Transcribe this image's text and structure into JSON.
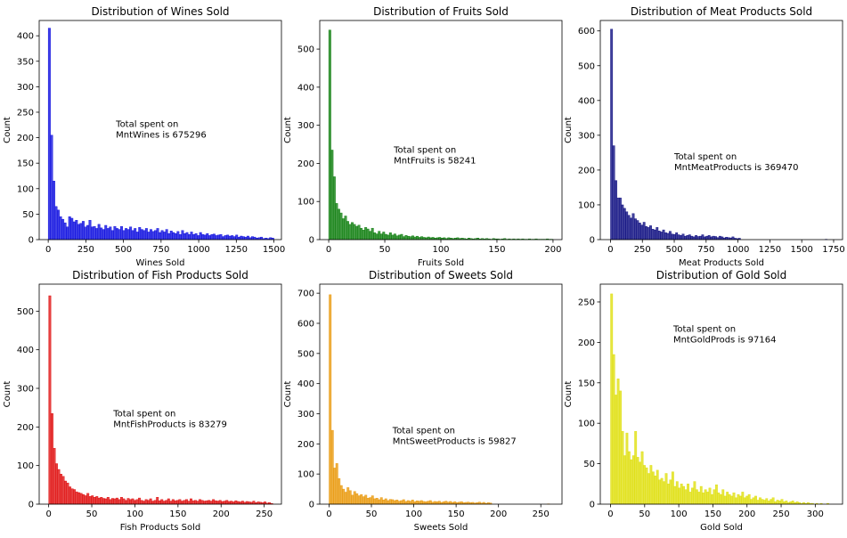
{
  "chart_data": [
    {
      "type": "bar",
      "title": "Distribution of Wines Sold",
      "xlabel": "Wines Sold",
      "ylabel": "Count",
      "xlim": [
        -60,
        1550
      ],
      "ylim": [
        0,
        430
      ],
      "xticks": [
        0,
        250,
        500,
        750,
        1000,
        1250,
        1500
      ],
      "yticks": [
        0,
        50,
        100,
        150,
        200,
        250,
        300,
        350,
        400
      ],
      "color": "#0000dd",
      "annotation": [
        "Total spent on",
        "MntWines is 675296"
      ],
      "annotation_pos": [
        450,
        200
      ],
      "bin_width": 15,
      "values": [
        415,
        205,
        115,
        65,
        58,
        45,
        40,
        33,
        25,
        45,
        42,
        35,
        38,
        30,
        32,
        36,
        25,
        28,
        38,
        25,
        26,
        22,
        30,
        23,
        20,
        28,
        22,
        25,
        18,
        26,
        22,
        20,
        26,
        18,
        22,
        20,
        25,
        18,
        22,
        15,
        24,
        20,
        18,
        22,
        15,
        20,
        16,
        18,
        22,
        14,
        18,
        15,
        20,
        12,
        17,
        14,
        12,
        16,
        10,
        18,
        12,
        14,
        10,
        15,
        10,
        12,
        8,
        14,
        10,
        9,
        12,
        8,
        10,
        11,
        8,
        9,
        10,
        6,
        8,
        9,
        7,
        8,
        6,
        9,
        5,
        7,
        6,
        5,
        7,
        4,
        6,
        5,
        3,
        4,
        5,
        2,
        3,
        2,
        4,
        3,
        0
      ]
    },
    {
      "type": "bar",
      "title": "Distribution of Fruits Sold",
      "xlabel": "Fruits Sold",
      "ylabel": "Count",
      "xlim": [
        -8,
        208
      ],
      "ylim": [
        0,
        575
      ],
      "xticks": [
        0,
        50,
        100,
        150,
        200
      ],
      "yticks": [
        0,
        100,
        200,
        300,
        400,
        500
      ],
      "color": "#007700",
      "annotation": [
        "Total spent on",
        "MntFruits is 58241"
      ],
      "annotation_pos": [
        58,
        200
      ],
      "bin_width": 2,
      "values": [
        550,
        235,
        165,
        95,
        80,
        70,
        55,
        62,
        48,
        40,
        45,
        40,
        35,
        38,
        30,
        25,
        32,
        28,
        22,
        30,
        18,
        15,
        22,
        15,
        20,
        14,
        12,
        18,
        12,
        15,
        10,
        12,
        14,
        8,
        11,
        9,
        8,
        10,
        7,
        9,
        6,
        8,
        6,
        5,
        7,
        5,
        6,
        4,
        5,
        6,
        4,
        5,
        3,
        5,
        4,
        3,
        4,
        5,
        3,
        4,
        3,
        2,
        4,
        3,
        2,
        3,
        4,
        2,
        3,
        2,
        3,
        2,
        1,
        3,
        2,
        2,
        1,
        2,
        3,
        1,
        2,
        1,
        2,
        1,
        2,
        1,
        2,
        1,
        1,
        2,
        1,
        1,
        2,
        1,
        1,
        1,
        1,
        2,
        1,
        1
      ]
    },
    {
      "type": "bar",
      "title": "Distribution of Meat Products Sold",
      "xlabel": "Meat Products Sold",
      "ylabel": "Count",
      "xlim": [
        -80,
        1820
      ],
      "ylim": [
        0,
        630
      ],
      "xticks": [
        0,
        250,
        500,
        750,
        1000,
        1250,
        1500,
        1750
      ],
      "yticks": [
        0,
        100,
        200,
        300,
        400,
        500,
        600
      ],
      "color": "#00007a",
      "annotation": [
        "Total spent on",
        "MntMeatProducts is 369470"
      ],
      "annotation_pos": [
        500,
        200
      ],
      "bin_width": 17,
      "values": [
        605,
        270,
        170,
        120,
        120,
        100,
        90,
        80,
        70,
        62,
        75,
        60,
        55,
        48,
        42,
        50,
        38,
        35,
        40,
        30,
        28,
        35,
        25,
        22,
        28,
        20,
        18,
        24,
        16,
        15,
        20,
        14,
        12,
        16,
        10,
        12,
        14,
        10,
        8,
        12,
        9,
        10,
        14,
        8,
        10,
        12,
        8,
        10,
        9,
        6,
        10,
        8,
        5,
        7,
        6,
        5,
        8,
        4,
        3,
        4,
        0,
        0,
        0,
        0,
        0,
        0,
        0,
        0,
        0,
        0,
        0,
        0,
        0,
        0,
        0,
        0,
        0,
        0,
        0,
        0,
        0,
        0,
        0,
        0,
        0,
        0,
        0,
        0,
        0,
        0,
        0,
        0,
        0,
        0,
        0,
        0,
        0,
        0,
        0,
        1
      ]
    },
    {
      "type": "bar",
      "title": "Distribution of Fish Products Sold",
      "xlabel": "Fish Products Sold",
      "ylabel": "Count",
      "xlim": [
        -11,
        270
      ],
      "ylim": [
        0,
        570
      ],
      "xticks": [
        0,
        50,
        100,
        150,
        200,
        250
      ],
      "yticks": [
        0,
        100,
        200,
        300,
        400,
        500
      ],
      "color": "#dd0000",
      "annotation": [
        "Total spent on",
        "MntFishProducts is 83279"
      ],
      "annotation_pos": [
        75,
        200
      ],
      "bin_width": 2.6,
      "values": [
        540,
        235,
        145,
        105,
        90,
        78,
        72,
        60,
        55,
        45,
        40,
        38,
        32,
        30,
        28,
        25,
        22,
        28,
        20,
        22,
        18,
        20,
        16,
        18,
        15,
        14,
        18,
        12,
        15,
        14,
        16,
        12,
        18,
        14,
        10,
        15,
        12,
        14,
        10,
        12,
        16,
        10,
        8,
        12,
        10,
        14,
        8,
        10,
        18,
        9,
        12,
        8,
        10,
        14,
        8,
        12,
        9,
        10,
        12,
        8,
        10,
        12,
        8,
        14,
        9,
        10,
        8,
        12,
        10,
        8,
        9,
        10,
        8,
        12,
        9,
        8,
        10,
        7,
        8,
        10,
        7,
        8,
        6,
        9,
        7,
        6,
        8,
        5,
        7,
        6,
        5,
        8,
        4,
        6,
        5,
        4,
        6,
        3,
        4,
        2
      ]
    },
    {
      "type": "bar",
      "title": "Distribution of Sweets Sold",
      "xlabel": "Sweets Sold",
      "ylabel": "Count",
      "xlim": [
        -11,
        275
      ],
      "ylim": [
        0,
        730
      ],
      "xticks": [
        0,
        50,
        100,
        150,
        200,
        250
      ],
      "yticks": [
        0,
        100,
        200,
        300,
        400,
        500,
        600,
        700
      ],
      "color": "#e89400",
      "annotation": [
        "Total spent on",
        "MntSweetProducts is 59827"
      ],
      "annotation_pos": [
        75,
        200
      ],
      "bin_width": 2.63,
      "values": [
        695,
        245,
        120,
        135,
        85,
        62,
        50,
        40,
        55,
        45,
        30,
        42,
        35,
        28,
        32,
        25,
        30,
        20,
        22,
        28,
        18,
        20,
        15,
        22,
        14,
        18,
        12,
        16,
        15,
        12,
        14,
        10,
        12,
        15,
        9,
        12,
        10,
        14,
        8,
        11,
        10,
        12,
        9,
        8,
        10,
        12,
        7,
        9,
        8,
        10,
        6,
        8,
        10,
        7,
        9,
        6,
        8,
        5,
        7,
        8,
        5,
        6,
        7,
        5,
        6,
        4,
        5,
        7,
        4,
        6,
        3,
        5,
        4,
        0,
        0,
        0,
        0,
        0,
        0,
        0,
        0,
        0,
        0,
        0,
        0,
        0,
        0,
        0,
        0,
        0,
        0,
        0,
        0,
        0,
        0,
        0,
        0,
        0,
        1,
        0
      ]
    },
    {
      "type": "bar",
      "title": "Distribution of Gold Sold",
      "xlabel": "Gold Sold",
      "ylabel": "Count",
      "xlim": [
        -15,
        340
      ],
      "ylim": [
        0,
        272
      ],
      "xticks": [
        0,
        50,
        100,
        150,
        200,
        250,
        300
      ],
      "yticks": [
        0,
        50,
        100,
        150,
        200,
        250
      ],
      "color": "#dddd00",
      "annotation": [
        "Total spent on",
        "MntGoldProds is 97164"
      ],
      "annotation_pos": [
        92,
        200
      ],
      "bin_width": 3.2,
      "values": [
        260,
        185,
        135,
        155,
        140,
        90,
        60,
        88,
        65,
        55,
        60,
        90,
        58,
        52,
        65,
        48,
        45,
        38,
        48,
        40,
        35,
        42,
        30,
        32,
        28,
        38,
        25,
        30,
        40,
        22,
        28,
        20,
        25,
        22,
        18,
        25,
        15,
        20,
        28,
        18,
        15,
        22,
        14,
        18,
        15,
        20,
        12,
        18,
        24,
        14,
        12,
        18,
        10,
        15,
        12,
        10,
        14,
        8,
        12,
        10,
        15,
        8,
        10,
        12,
        6,
        8,
        10,
        5,
        8,
        6,
        5,
        7,
        4,
        6,
        8,
        3,
        5,
        4,
        6,
        3,
        4,
        2,
        3,
        4,
        2,
        3,
        2,
        1,
        2,
        1,
        2,
        1,
        1,
        0,
        1,
        0,
        1,
        0,
        0,
        1
      ]
    }
  ]
}
